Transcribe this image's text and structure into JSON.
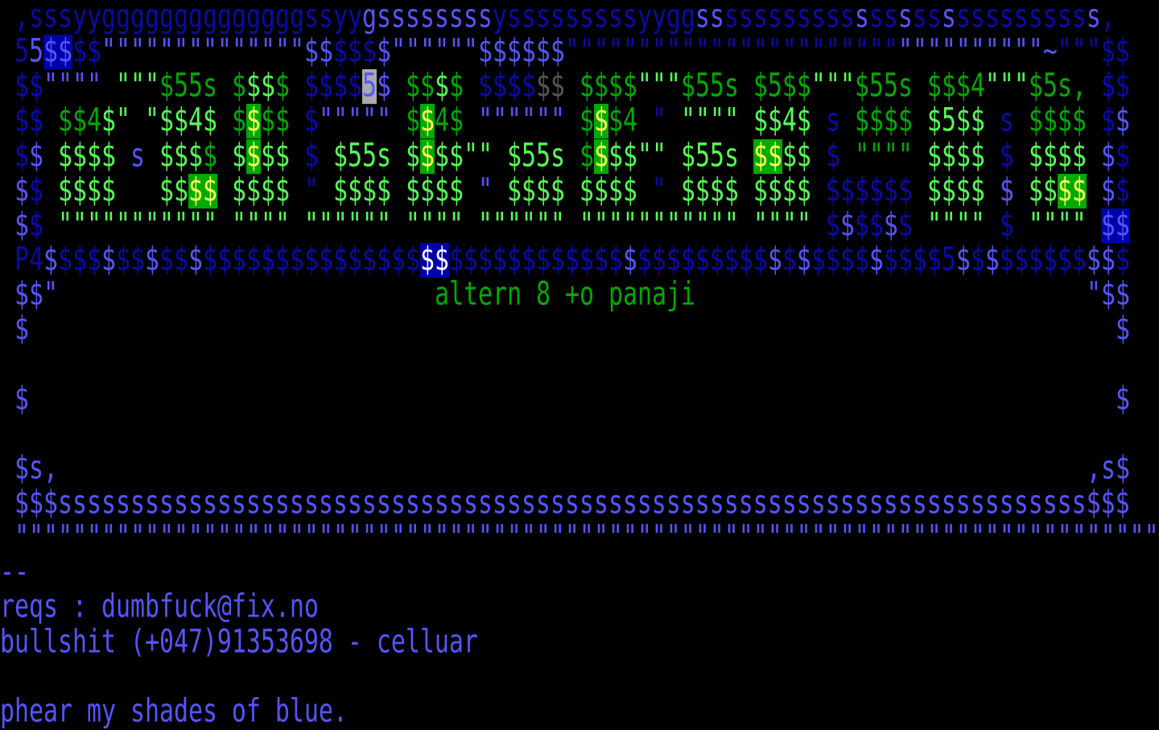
{
  "art": {
    "palette": {
      "D": "#0a0aaa",
      "L": "#5555ff",
      "G": "#00aa00",
      "g": "#55ff55",
      "Y": "#ffff55",
      "W": "#ffffff",
      "k": "#555555",
      "K": "#aaaaaa",
      "B": "#0000aa"
    },
    "rows": [
      {
        "l": [
          [
            " ",
            "D"
          ],
          [
            ",",
            "D"
          ],
          [
            "sss",
            "D"
          ],
          [
            "yy",
            "D"
          ],
          [
            "gggggggggggggg",
            "D"
          ],
          [
            "ssyy",
            "D"
          ],
          [
            "g",
            "L"
          ],
          [
            "ssssssss",
            "L"
          ],
          [
            "y",
            "D"
          ],
          [
            "sssssssss",
            "D"
          ],
          [
            "yygg",
            "D"
          ],
          [
            "ss",
            "L"
          ],
          [
            "sssssssss",
            "D"
          ],
          [
            "s",
            "L"
          ],
          [
            "ss",
            "D"
          ],
          [
            "s",
            "L"
          ],
          [
            "ss",
            "D"
          ],
          [
            "s",
            "L"
          ],
          [
            "sssssssss",
            "D"
          ],
          [
            "s",
            "L"
          ],
          [
            ",",
            "D"
          ]
        ]
      },
      {
        "l": [
          [
            " ",
            "D"
          ],
          [
            "5",
            "D"
          ],
          [
            "5",
            "L"
          ],
          [
            "$$",
            "L",
            "B"
          ],
          [
            "$$",
            "D"
          ],
          [
            "\"\"\"\"\"\"\"\"\"\"\"\"\"\"",
            "L"
          ],
          [
            "$$",
            "L"
          ],
          [
            "$$$",
            "D"
          ],
          [
            "$",
            "L"
          ],
          [
            "\"\"\"\"\"\"",
            "L"
          ],
          [
            "$$$$$$",
            "L"
          ],
          [
            "\"\"\"\"\"\"\"\"\"\"\"\"\"\"\"\"\"\"\"\"\"\"\"",
            "D"
          ],
          [
            "\"\"\"\"\"\"\"\"\"\"",
            "L"
          ],
          [
            "~",
            "L"
          ],
          [
            "\"\"\"",
            "D"
          ],
          [
            "$$",
            "D"
          ]
        ]
      },
      {
        "l": [
          [
            " ",
            "D"
          ],
          [
            "$$",
            "D"
          ],
          [
            "\"\"\"\"",
            "L"
          ],
          [
            " ",
            "D"
          ],
          [
            "\"\"\"",
            "g"
          ],
          [
            "$55s",
            "G"
          ],
          [
            " ",
            "D"
          ],
          [
            "$",
            "G"
          ],
          [
            "$$",
            "g"
          ],
          [
            "$",
            "G"
          ],
          [
            " ",
            "D"
          ],
          [
            "$$$$",
            "D"
          ],
          [
            "5",
            "L",
            "K"
          ],
          [
            "$",
            "L"
          ],
          [
            " ",
            "D"
          ],
          [
            "$$",
            "G"
          ],
          [
            "$",
            "g"
          ],
          [
            "$",
            "G"
          ],
          [
            " ",
            "D"
          ],
          [
            "$$$$",
            "D"
          ],
          [
            "$$",
            "k"
          ],
          [
            " ",
            "D"
          ],
          [
            "$$$$",
            "G"
          ],
          [
            "\"\"\"",
            "g"
          ],
          [
            "$55s",
            "G"
          ],
          [
            " ",
            "D"
          ],
          [
            "$5$$",
            "G"
          ],
          [
            "\"\"\"",
            "g"
          ],
          [
            "$55s",
            "G"
          ],
          [
            " ",
            "D"
          ],
          [
            "$$$4",
            "G"
          ],
          [
            "\"\"\"",
            "g"
          ],
          [
            "$5s,",
            "G"
          ],
          [
            " ",
            "D"
          ],
          [
            "$$",
            "D"
          ]
        ]
      },
      {
        "l": [
          [
            " ",
            "D"
          ],
          [
            "$$",
            "D"
          ],
          [
            " ",
            "D"
          ],
          [
            "$$4",
            "G"
          ],
          [
            "$",
            "g"
          ],
          [
            "\"",
            "g"
          ],
          [
            " ",
            "D"
          ],
          [
            "\"",
            "g"
          ],
          [
            "$$4$",
            "g"
          ],
          [
            " ",
            "D"
          ],
          [
            "$",
            "G"
          ],
          [
            "$",
            "Y",
            "G"
          ],
          [
            "$$",
            "G"
          ],
          [
            " ",
            "D"
          ],
          [
            "$",
            "D"
          ],
          [
            "\"\"\"\"\"",
            "L"
          ],
          [
            " ",
            "D"
          ],
          [
            "$",
            "G"
          ],
          [
            "$",
            "Y",
            "G"
          ],
          [
            "4$",
            "G"
          ],
          [
            " ",
            "D"
          ],
          [
            "\"\"\"\"\"\"",
            "L"
          ],
          [
            " ",
            "D"
          ],
          [
            "$",
            "G"
          ],
          [
            "$",
            "Y",
            "G"
          ],
          [
            "$4",
            "G"
          ],
          [
            " ",
            "D"
          ],
          [
            "\"",
            "D"
          ],
          [
            " ",
            "D"
          ],
          [
            "\"\"\"\"",
            "g"
          ],
          [
            " ",
            "D"
          ],
          [
            "$$4$",
            "g"
          ],
          [
            " ",
            "D"
          ],
          [
            "s",
            "D"
          ],
          [
            " ",
            "D"
          ],
          [
            "$$$$",
            "G"
          ],
          [
            " ",
            "D"
          ],
          [
            "$5$$",
            "g"
          ],
          [
            " ",
            "D"
          ],
          [
            "s",
            "D"
          ],
          [
            " ",
            "D"
          ],
          [
            "$$$$",
            "G"
          ],
          [
            " ",
            "D"
          ],
          [
            "$",
            "D"
          ],
          [
            "$",
            "L"
          ]
        ]
      },
      {
        "l": [
          [
            " ",
            "D"
          ],
          [
            "$",
            "D"
          ],
          [
            "$",
            "L"
          ],
          [
            " ",
            "D"
          ],
          [
            "$$$$",
            "g"
          ],
          [
            " ",
            "D"
          ],
          [
            "s",
            "L"
          ],
          [
            " ",
            "D"
          ],
          [
            "$$$",
            "g"
          ],
          [
            "$",
            "G"
          ],
          [
            " ",
            "D"
          ],
          [
            "$",
            "g"
          ],
          [
            "$",
            "Y",
            "G"
          ],
          [
            "$$",
            "g"
          ],
          [
            " ",
            "D"
          ],
          [
            "$",
            "D"
          ],
          [
            " ",
            "D"
          ],
          [
            "$55s",
            "g"
          ],
          [
            " ",
            "D"
          ],
          [
            "$",
            "g"
          ],
          [
            "$",
            "Y",
            "G"
          ],
          [
            "$$",
            "g"
          ],
          [
            "\"\"",
            "g"
          ],
          [
            " ",
            "D"
          ],
          [
            "$55s",
            "g"
          ],
          [
            " ",
            "D"
          ],
          [
            "$",
            "G"
          ],
          [
            "$",
            "Y",
            "G"
          ],
          [
            "$$",
            "g"
          ],
          [
            "\"\"",
            "g"
          ],
          [
            " ",
            "D"
          ],
          [
            "$55s",
            "g"
          ],
          [
            " ",
            "D"
          ],
          [
            "$$",
            "Y",
            "G"
          ],
          [
            "$$",
            "g"
          ],
          [
            " ",
            "D"
          ],
          [
            "$",
            "D"
          ],
          [
            " ",
            "D"
          ],
          [
            "\"\"\"\"",
            "G"
          ],
          [
            " ",
            "D"
          ],
          [
            "$$$$",
            "g"
          ],
          [
            " ",
            "D"
          ],
          [
            "$",
            "D"
          ],
          [
            " ",
            "D"
          ],
          [
            "$$$$",
            "g"
          ],
          [
            " ",
            "D"
          ],
          [
            "$",
            "L"
          ],
          [
            "$",
            "D"
          ]
        ]
      },
      {
        "l": [
          [
            " ",
            "D"
          ],
          [
            "$",
            "L"
          ],
          [
            "$",
            "D"
          ],
          [
            " ",
            "D"
          ],
          [
            "$$$$",
            "g"
          ],
          [
            "   ",
            "D"
          ],
          [
            "$$",
            "g"
          ],
          [
            "$$",
            "Y",
            "G"
          ],
          [
            " ",
            "D"
          ],
          [
            "$$$$",
            "g"
          ],
          [
            " ",
            "D"
          ],
          [
            "\"",
            "D"
          ],
          [
            " ",
            "D"
          ],
          [
            "$$$$",
            "g"
          ],
          [
            " ",
            "D"
          ],
          [
            "$$$$",
            "g"
          ],
          [
            " ",
            "D"
          ],
          [
            "\"",
            "L"
          ],
          [
            " ",
            "D"
          ],
          [
            "$$$$",
            "g"
          ],
          [
            " ",
            "D"
          ],
          [
            "$$$$",
            "g"
          ],
          [
            " ",
            "D"
          ],
          [
            "\"",
            "D"
          ],
          [
            " ",
            "D"
          ],
          [
            "$$$$",
            "g"
          ],
          [
            " ",
            "D"
          ],
          [
            "$$$$",
            "g"
          ],
          [
            " ",
            "D"
          ],
          [
            "$$$$$$",
            "D"
          ],
          [
            " ",
            "D"
          ],
          [
            "$$$$",
            "g"
          ],
          [
            " ",
            "D"
          ],
          [
            "$",
            "L"
          ],
          [
            " ",
            "D"
          ],
          [
            "$$",
            "g"
          ],
          [
            "$$",
            "Y",
            "G"
          ],
          [
            " ",
            "D"
          ],
          [
            "$",
            "L"
          ],
          [
            "$",
            "D"
          ]
        ]
      },
      {
        "l": [
          [
            " ",
            "D"
          ],
          [
            "$",
            "L"
          ],
          [
            "$",
            "D"
          ],
          [
            " ",
            "D"
          ],
          [
            "\"\"\"\"\"\"\"\"\"\"\"",
            "g"
          ],
          [
            " ",
            "D"
          ],
          [
            "\"\"\"\"",
            "g"
          ],
          [
            " ",
            "D"
          ],
          [
            "\"\"\"\"\"\"",
            "g"
          ],
          [
            " ",
            "D"
          ],
          [
            "\"\"\"\"",
            "g"
          ],
          [
            " ",
            "D"
          ],
          [
            "\"\"\"\"\"\"",
            "g"
          ],
          [
            " ",
            "D"
          ],
          [
            "\"\"\"\"\"\"\"\"\"\"\"",
            "g"
          ],
          [
            " ",
            "D"
          ],
          [
            "\"\"\"\"",
            "g"
          ],
          [
            " ",
            "D"
          ],
          [
            "$",
            "D"
          ],
          [
            "$",
            "L"
          ],
          [
            "$$",
            "D"
          ],
          [
            "$",
            "L"
          ],
          [
            "$",
            "D"
          ],
          [
            " ",
            "D"
          ],
          [
            "\"\"\"\"",
            "g"
          ],
          [
            " ",
            "D"
          ],
          [
            "$",
            "D"
          ],
          [
            " ",
            "D"
          ],
          [
            "\"\"\"\"",
            "g"
          ],
          [
            " ",
            "D"
          ],
          [
            "$$",
            "L",
            "B"
          ]
        ]
      },
      {
        "l": [
          [
            " ",
            "D"
          ],
          [
            "P4",
            "D"
          ],
          [
            "$",
            "L"
          ],
          [
            "$$$",
            "D"
          ],
          [
            "$",
            "L"
          ],
          [
            "$$",
            "D"
          ],
          [
            "$",
            "L"
          ],
          [
            "$$",
            "D"
          ],
          [
            "$",
            "L"
          ],
          [
            "$$$$$$$$$$$$$$$",
            "D"
          ],
          [
            "$$",
            "W",
            "B"
          ],
          [
            "$$$$$$$$$$$$",
            "D"
          ],
          [
            "$",
            "L"
          ],
          [
            "$$$$$$$$$",
            "D"
          ],
          [
            "$",
            "L"
          ],
          [
            "$",
            "D"
          ],
          [
            "$",
            "L"
          ],
          [
            "$$$$",
            "D"
          ],
          [
            "$",
            "L"
          ],
          [
            "$$$$",
            "D"
          ],
          [
            "5",
            "D"
          ],
          [
            "$",
            "L"
          ],
          [
            "$",
            "D"
          ],
          [
            "$",
            "L"
          ],
          [
            "$$$$$$",
            "D"
          ],
          [
            "$",
            "L"
          ],
          [
            "$",
            "L"
          ],
          [
            "$",
            "D"
          ]
        ]
      },
      {
        "l": [
          [
            " ",
            "L"
          ],
          [
            "$$\"",
            "L"
          ]
        ],
        "c": [
          [
            "altern 8 +o panaji",
            "G"
          ]
        ],
        "r": [
          [
            "\"$$",
            "L"
          ]
        ]
      },
      {
        "l": [
          [
            " $",
            "L"
          ]
        ],
        "r": [
          [
            "$",
            "L"
          ]
        ]
      },
      {},
      {
        "l": [
          [
            " $",
            "L"
          ]
        ],
        "r": [
          [
            "$",
            "L"
          ]
        ]
      },
      {},
      {
        "l": [
          [
            " $s,",
            "L"
          ]
        ],
        "r": [
          [
            ",s$",
            "L"
          ]
        ]
      },
      {
        "l": [
          [
            " $$$",
            "L"
          ],
          [
            "sssssssssssssssssssssssssssssssssssssssssssssssssssssssssssssssssssssss",
            "L"
          ],
          [
            "$$$",
            "L"
          ]
        ]
      },
      {
        "l": [
          [
            " ",
            "L"
          ],
          [
            "\"\"\"\"\"\"\"\"\"\"\"\"\"\"\"\"\"\"\"\"\"\"\"\"\"\"\"\"\"\"\"\"\"\"\"\"\"\"\"\"\"\"\"\"\"\"\"\"\"\"\"\"\"\"\"\"\"\"\"\"\"\"\"\"\"\"\"\"\"\"\"\"\"\"\"\"\"\"\"",
            "L"
          ]
        ]
      },
      {
        "l": [
          [
            "--",
            "L"
          ]
        ]
      },
      {
        "l": [
          [
            "reqs : dumbfuck@fix.no",
            "L"
          ]
        ]
      },
      {
        "l": [
          [
            "bullshit (+047)91353698 - celluar",
            "L"
          ]
        ]
      },
      {},
      {
        "l": [
          [
            "phear my shades of blue.",
            "L"
          ]
        ]
      }
    ]
  }
}
